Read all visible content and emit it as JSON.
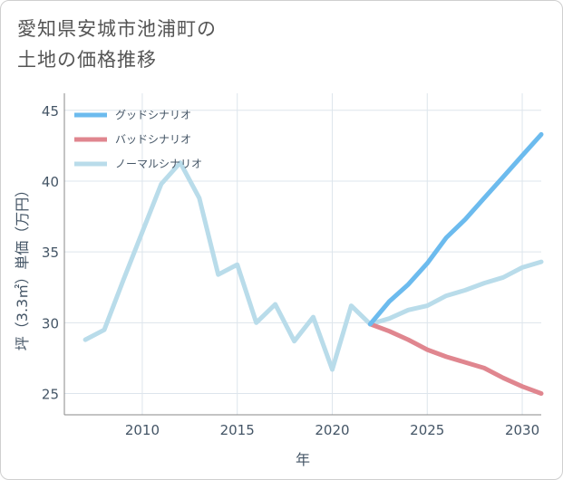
{
  "title_lines": [
    "愛知県安城市池浦町の",
    "土地の価格推移"
  ],
  "chart_data": {
    "type": "line",
    "title": "愛知県安城市池浦町の土地の価格推移",
    "xlabel": "年",
    "ylabel": "坪（3.3㎡）単価（万円）",
    "xlim": [
      2005.9,
      2031
    ],
    "ylim": [
      23.5,
      46.2
    ],
    "x_ticks": [
      2010,
      2015,
      2020,
      2025,
      2030
    ],
    "y_ticks": [
      25,
      30,
      35,
      40,
      45
    ],
    "grid": true,
    "legend_position": "top-left",
    "series": [
      {
        "name": "グッドシナリオ",
        "color": "#6cbbee",
        "x": [
          2022,
          2023,
          2024,
          2025,
          2026,
          2027,
          2028,
          2029,
          2030,
          2031
        ],
        "values": [
          29.9,
          31.5,
          32.7,
          34.2,
          36.0,
          37.3,
          38.8,
          40.3,
          41.8,
          43.3
        ]
      },
      {
        "name": "バッドシナリオ",
        "color": "#e0868f",
        "x": [
          2022,
          2023,
          2024,
          2025,
          2026,
          2027,
          2028,
          2029,
          2030,
          2031
        ],
        "values": [
          29.9,
          29.4,
          28.8,
          28.1,
          27.6,
          27.2,
          26.8,
          26.1,
          25.5,
          25.0
        ]
      },
      {
        "name": "ノーマルシナリオ",
        "color": "#b9dcea",
        "x": [
          2007,
          2008,
          2009,
          2010,
          2011,
          2012,
          2013,
          2014,
          2015,
          2016,
          2017,
          2018,
          2019,
          2020,
          2021,
          2022,
          2023,
          2024,
          2025,
          2026,
          2027,
          2028,
          2029,
          2030,
          2031
        ],
        "values": [
          28.8,
          29.5,
          33.0,
          36.4,
          39.8,
          41.3,
          38.8,
          33.4,
          34.1,
          30.0,
          31.3,
          28.7,
          30.4,
          26.7,
          31.2,
          29.9,
          30.3,
          30.9,
          31.2,
          31.9,
          32.3,
          32.8,
          33.2,
          33.9,
          34.3
        ]
      }
    ]
  }
}
